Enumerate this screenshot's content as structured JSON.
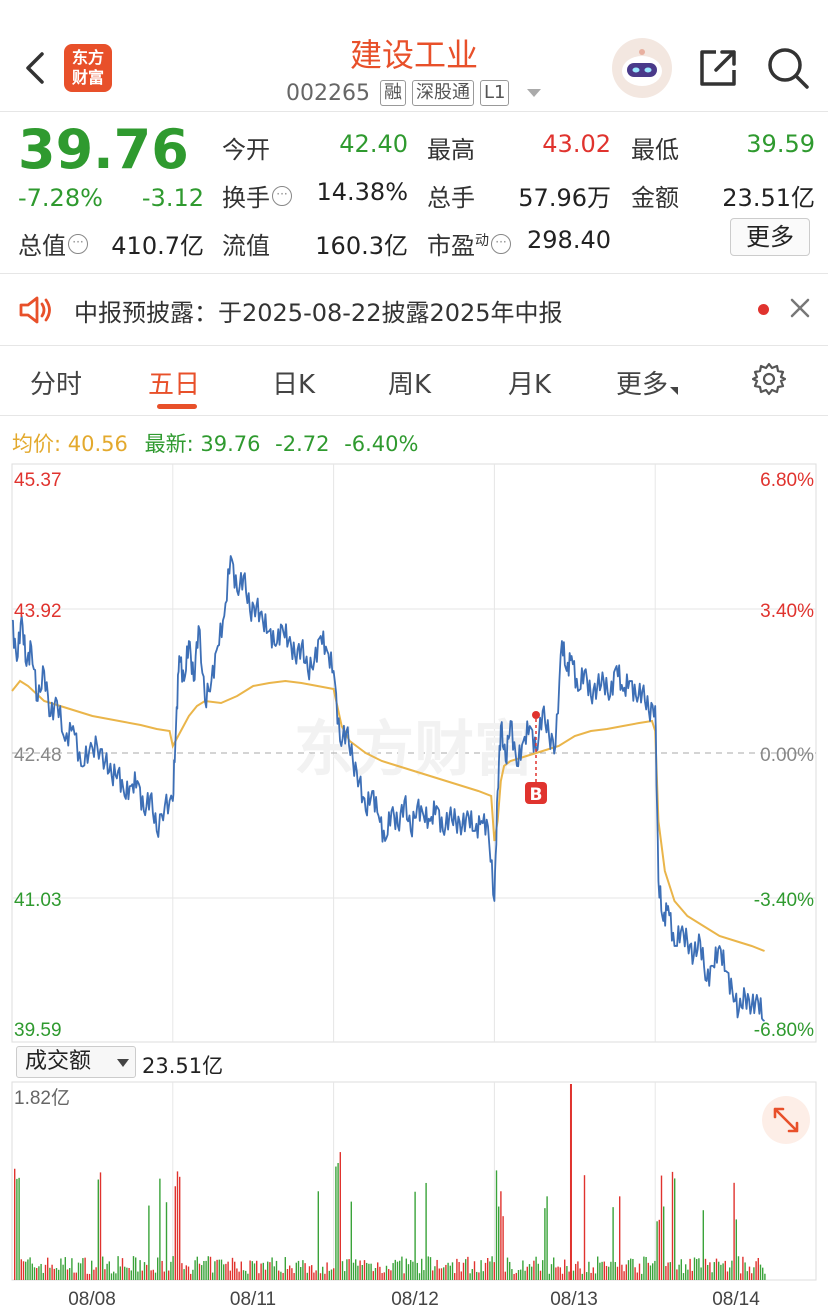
{
  "header": {
    "logo_line1": "东方",
    "logo_line2": "财富",
    "title": "建设工业",
    "code": "002265",
    "tags": [
      "融",
      "深股通",
      "L1"
    ]
  },
  "quote": {
    "price": "39.76",
    "change_pct": "-7.28%",
    "change_abs": "-3.12",
    "fields": {
      "open_label": "今开",
      "open_value": "42.40",
      "high_label": "最高",
      "high_value": "43.02",
      "low_label": "最低",
      "low_value": "39.59",
      "turnover_label": "换手",
      "turnover_value": "14.38%",
      "volume_label": "总手",
      "volume_value": "57.96万",
      "amount_label": "金额",
      "amount_value": "23.51亿",
      "mktcap_label": "总值",
      "mktcap_value": "410.7亿",
      "float_label": "流值",
      "float_value": "160.3亿",
      "pe_label": "市盈",
      "pe_sup": "动",
      "pe_value": "298.40"
    },
    "more_label": "更多"
  },
  "notice": {
    "text": "中报预披露：于2025-08-22披露2025年中报"
  },
  "tabs": {
    "items": [
      "分时",
      "五日",
      "日K",
      "周K",
      "月K",
      "更多"
    ],
    "active": "五日"
  },
  "infoline": {
    "avg_label": "均价:",
    "avg_value": "40.56",
    "latest_label": "最新:",
    "latest_value": "39.76",
    "latest_change": "-2.72",
    "latest_pct": "-6.40%"
  },
  "volume": {
    "selector_label": "成交额",
    "total": "23.51亿"
  },
  "colors": {
    "up": "#e0332e",
    "down": "#2f9a2f",
    "price_line": "#3d6fb6",
    "avg_line": "#eab54a",
    "brand": "#e8502a"
  },
  "chart_data": {
    "type": "line",
    "title": "",
    "xlabel": "",
    "ylabel": "",
    "x_ticks": [
      "08/08",
      "08/11",
      "08/12",
      "08/13",
      "08/14"
    ],
    "y_ticks_left": [
      "45.37",
      "43.92",
      "42.48",
      "41.03",
      "39.59"
    ],
    "y_ticks_right": [
      "6.80%",
      "3.40%",
      "0.00%",
      "-3.40%",
      "-6.80%"
    ],
    "ylim": [
      39.59,
      45.37
    ],
    "reference_price": 42.48,
    "marker_label": "B",
    "volume_max_label": "1.82亿",
    "series": [
      {
        "values": [
          [
            0.0,
            43.8
          ],
          [
            0.03,
            43.4
          ],
          [
            0.06,
            43.85
          ],
          [
            0.09,
            43.35
          ],
          [
            0.12,
            43.55
          ],
          [
            0.16,
            43.0
          ],
          [
            0.2,
            43.3
          ],
          [
            0.24,
            42.85
          ],
          [
            0.28,
            43.0
          ],
          [
            0.33,
            42.6
          ],
          [
            0.38,
            42.75
          ],
          [
            0.43,
            42.35
          ],
          [
            0.48,
            42.5
          ],
          [
            0.53,
            42.55
          ],
          [
            0.58,
            42.4
          ],
          [
            0.62,
            42.25
          ],
          [
            0.66,
            42.3
          ],
          [
            0.7,
            42.05
          ],
          [
            0.74,
            42.15
          ],
          [
            0.78,
            42.2
          ],
          [
            0.82,
            41.9
          ],
          [
            0.86,
            42.05
          ],
          [
            0.9,
            41.7
          ],
          [
            0.95,
            41.95
          ],
          [
            1.0,
            42.0
          ],
          [
            1.02,
            42.75
          ],
          [
            1.04,
            43.45
          ],
          [
            1.07,
            43.2
          ],
          [
            1.1,
            43.6
          ],
          [
            1.13,
            43.2
          ],
          [
            1.16,
            43.75
          ],
          [
            1.2,
            43.0
          ],
          [
            1.24,
            43.2
          ],
          [
            1.28,
            43.55
          ],
          [
            1.32,
            43.85
          ],
          [
            1.36,
            44.45
          ],
          [
            1.4,
            44.1
          ],
          [
            1.44,
            44.25
          ],
          [
            1.48,
            43.9
          ],
          [
            1.52,
            43.95
          ],
          [
            1.56,
            43.8
          ],
          [
            1.6,
            43.7
          ],
          [
            1.64,
            43.55
          ],
          [
            1.68,
            43.75
          ],
          [
            1.72,
            43.6
          ],
          [
            1.76,
            43.45
          ],
          [
            1.8,
            43.55
          ],
          [
            1.84,
            43.3
          ],
          [
            1.88,
            43.4
          ],
          [
            1.92,
            43.65
          ],
          [
            1.96,
            43.5
          ],
          [
            2.0,
            43.3
          ],
          [
            2.04,
            42.6
          ],
          [
            2.08,
            42.7
          ],
          [
            2.12,
            42.4
          ],
          [
            2.16,
            42.2
          ],
          [
            2.2,
            41.9
          ],
          [
            2.24,
            42.1
          ],
          [
            2.28,
            41.85
          ],
          [
            2.32,
            41.6
          ],
          [
            2.36,
            41.9
          ],
          [
            2.4,
            41.75
          ],
          [
            2.44,
            42.0
          ],
          [
            2.48,
            41.7
          ],
          [
            2.52,
            41.95
          ],
          [
            2.56,
            41.85
          ],
          [
            2.6,
            41.8
          ],
          [
            2.64,
            41.95
          ],
          [
            2.68,
            41.7
          ],
          [
            2.72,
            41.85
          ],
          [
            2.76,
            41.8
          ],
          [
            2.8,
            41.75
          ],
          [
            2.84,
            41.85
          ],
          [
            2.88,
            41.7
          ],
          [
            2.92,
            41.8
          ],
          [
            2.96,
            41.75
          ],
          [
            3.0,
            41.0
          ],
          [
            3.02,
            42.1
          ],
          [
            3.04,
            42.75
          ],
          [
            3.07,
            42.4
          ],
          [
            3.1,
            42.8
          ],
          [
            3.14,
            42.35
          ],
          [
            3.18,
            42.6
          ],
          [
            3.22,
            42.75
          ],
          [
            3.26,
            42.5
          ],
          [
            3.3,
            42.9
          ],
          [
            3.34,
            42.65
          ],
          [
            3.38,
            42.55
          ],
          [
            3.42,
            43.6
          ],
          [
            3.45,
            43.3
          ],
          [
            3.48,
            43.45
          ],
          [
            3.52,
            43.1
          ],
          [
            3.56,
            43.3
          ],
          [
            3.6,
            43.05
          ],
          [
            3.64,
            43.15
          ],
          [
            3.68,
            43.2
          ],
          [
            3.72,
            43.05
          ],
          [
            3.76,
            43.35
          ],
          [
            3.8,
            43.1
          ],
          [
            3.84,
            43.2
          ],
          [
            3.88,
            43.05
          ],
          [
            3.92,
            43.1
          ],
          [
            3.96,
            42.9
          ],
          [
            4.0,
            42.95
          ],
          [
            4.02,
            41.2
          ],
          [
            4.05,
            40.8
          ],
          [
            4.08,
            40.95
          ],
          [
            4.12,
            40.55
          ],
          [
            4.16,
            40.7
          ],
          [
            4.2,
            40.6
          ],
          [
            4.24,
            40.45
          ],
          [
            4.28,
            40.6
          ],
          [
            4.32,
            40.2
          ],
          [
            4.36,
            40.35
          ],
          [
            4.4,
            40.55
          ],
          [
            4.44,
            40.3
          ],
          [
            4.48,
            40.1
          ],
          [
            4.52,
            39.9
          ],
          [
            4.56,
            40.05
          ],
          [
            4.6,
            39.95
          ],
          [
            4.64,
            40.0
          ],
          [
            4.68,
            39.8
          ]
        ]
      },
      {
        "values": [
          [
            0.0,
            43.1
          ],
          [
            0.05,
            43.2
          ],
          [
            0.1,
            43.15
          ],
          [
            0.2,
            43.0
          ],
          [
            0.3,
            42.95
          ],
          [
            0.4,
            42.9
          ],
          [
            0.5,
            42.85
          ],
          [
            0.6,
            42.82
          ],
          [
            0.7,
            42.79
          ],
          [
            0.8,
            42.76
          ],
          [
            0.9,
            42.72
          ],
          [
            0.98,
            42.7
          ],
          [
            1.0,
            42.55
          ],
          [
            1.05,
            42.7
          ],
          [
            1.1,
            42.85
          ],
          [
            1.15,
            42.95
          ],
          [
            1.2,
            43.0
          ],
          [
            1.3,
            42.98
          ],
          [
            1.4,
            43.05
          ],
          [
            1.5,
            43.15
          ],
          [
            1.6,
            43.18
          ],
          [
            1.7,
            43.2
          ],
          [
            1.8,
            43.18
          ],
          [
            1.9,
            43.15
          ],
          [
            2.0,
            43.12
          ],
          [
            2.05,
            42.75
          ],
          [
            2.1,
            42.6
          ],
          [
            2.2,
            42.48
          ],
          [
            2.3,
            42.4
          ],
          [
            2.4,
            42.35
          ],
          [
            2.5,
            42.3
          ],
          [
            2.6,
            42.25
          ],
          [
            2.7,
            42.2
          ],
          [
            2.8,
            42.15
          ],
          [
            2.9,
            42.1
          ],
          [
            2.98,
            42.05
          ],
          [
            3.0,
            41.6
          ],
          [
            3.02,
            41.8
          ],
          [
            3.04,
            42.2
          ],
          [
            3.06,
            42.35
          ],
          [
            3.1,
            42.4
          ],
          [
            3.2,
            42.45
          ],
          [
            3.3,
            42.5
          ],
          [
            3.4,
            42.55
          ],
          [
            3.5,
            42.65
          ],
          [
            3.6,
            42.7
          ],
          [
            3.7,
            42.72
          ],
          [
            3.8,
            42.75
          ],
          [
            3.9,
            42.78
          ],
          [
            3.98,
            42.8
          ],
          [
            4.0,
            42.7
          ],
          [
            4.02,
            41.8
          ],
          [
            4.06,
            41.3
          ],
          [
            4.12,
            41.0
          ],
          [
            4.2,
            40.85
          ],
          [
            4.3,
            40.75
          ],
          [
            4.4,
            40.65
          ],
          [
            4.5,
            40.6
          ],
          [
            4.6,
            40.55
          ],
          [
            4.68,
            40.5
          ]
        ]
      }
    ]
  }
}
